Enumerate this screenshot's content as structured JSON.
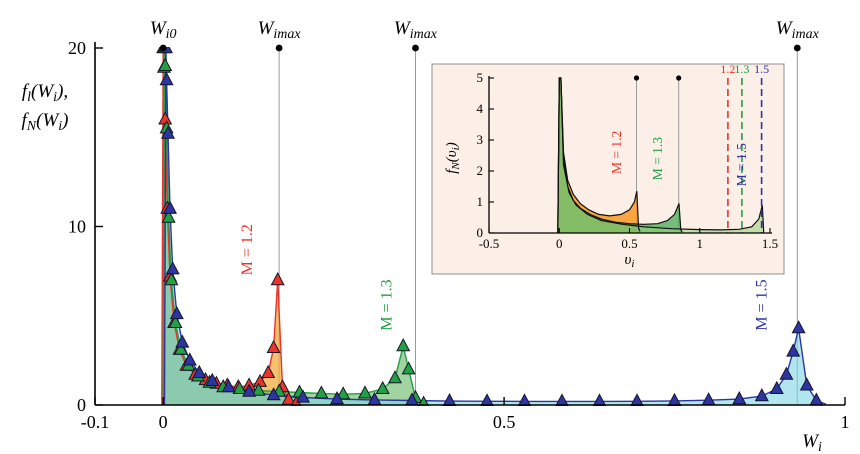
{
  "figure": {
    "background": "#ffffff"
  },
  "chart_data": [
    {
      "id": "main",
      "type": "line",
      "title": "",
      "ylabel_lines": [
        "f_{l}(W_{i}),",
        "f_{N}(W_{i})"
      ],
      "xlabel": "W_{i}",
      "xlim": [
        -0.1,
        1.0
      ],
      "ylim": [
        0,
        20
      ],
      "grid": false,
      "legend_position": "none",
      "xticks": [
        {
          "v": -0.1,
          "label": "-0.1"
        },
        {
          "v": 0,
          "label": "0"
        },
        {
          "v": 0.5,
          "label": "0.5"
        },
        {
          "v": 1,
          "label": "1"
        }
      ],
      "yticks": [
        {
          "v": 0,
          "label": "0"
        },
        {
          "v": 10,
          "label": "10"
        },
        {
          "v": 20,
          "label": "20"
        }
      ],
      "top_markers": [
        {
          "label": "W_{i0}",
          "x": 0
        },
        {
          "label": "W_{imax}",
          "x": 0.17
        },
        {
          "label": "W_{imax}",
          "x": 0.37
        },
        {
          "label": "W_{imax}",
          "x": 0.93
        }
      ],
      "series": [
        {
          "name": "M = 1.2",
          "color": "#e8342a",
          "fill": "rgba(242,166,50,0.70)",
          "marker": "triangle",
          "x": [
            -0.002,
            0.0,
            0.001,
            0.003,
            0.006,
            0.01,
            0.016,
            0.024,
            0.034,
            0.047,
            0.062,
            0.078,
            0.094,
            0.11,
            0.126,
            0.142,
            0.154,
            0.162,
            0.168,
            0.175,
            0.184,
            0.195
          ],
          "y": [
            0,
            20,
            18.9,
            16.0,
            11.0,
            7.2,
            4.6,
            3.1,
            2.2,
            1.7,
            1.4,
            1.2,
            1.1,
            1.0,
            1.1,
            1.3,
            1.8,
            3.2,
            7.0,
            1.0,
            0.3,
            0.08
          ]
        },
        {
          "name": "M = 1.3",
          "color": "#21a044",
          "fill": "rgba(84,176,84,0.55)",
          "marker": "triangle",
          "x": [
            0.0,
            0.002,
            0.003,
            0.005,
            0.008,
            0.012,
            0.018,
            0.026,
            0.037,
            0.051,
            0.068,
            0.088,
            0.112,
            0.14,
            0.17,
            0.2,
            0.232,
            0.264,
            0.296,
            0.322,
            0.34,
            0.352,
            0.36,
            0.37,
            0.382
          ],
          "y": [
            0,
            20,
            19.0,
            15.5,
            10.5,
            7.0,
            4.6,
            3.1,
            2.2,
            1.6,
            1.25,
            1.0,
            0.9,
            0.8,
            0.75,
            0.7,
            0.65,
            0.6,
            0.65,
            0.9,
            1.5,
            3.3,
            2.0,
            0.4,
            0.08
          ]
        },
        {
          "name": "M = 1.5",
          "color": "#2c35a2",
          "fill": "rgba(126,214,228,0.60)",
          "marker": "triangle",
          "x": [
            0.002,
            0.004,
            0.005,
            0.007,
            0.01,
            0.014,
            0.02,
            0.028,
            0.039,
            0.053,
            0.072,
            0.096,
            0.126,
            0.162,
            0.205,
            0.255,
            0.31,
            0.365,
            0.42,
            0.475,
            0.53,
            0.585,
            0.64,
            0.695,
            0.75,
            0.8,
            0.845,
            0.878,
            0.9,
            0.914,
            0.924,
            0.932,
            0.944,
            0.958,
            0.972
          ],
          "y": [
            0,
            20,
            18.2,
            15.2,
            11.0,
            7.6,
            5.1,
            3.5,
            2.5,
            1.8,
            1.35,
            1.0,
            0.75,
            0.55,
            0.42,
            0.33,
            0.28,
            0.25,
            0.22,
            0.21,
            0.2,
            0.2,
            0.2,
            0.21,
            0.23,
            0.27,
            0.33,
            0.5,
            0.9,
            1.7,
            3.0,
            4.3,
            1.1,
            0.25,
            0.05
          ]
        }
      ],
      "series_labels": [
        {
          "text": "M = 1.2",
          "color": "#e8342a",
          "x": 0.13,
          "y": 8.7
        },
        {
          "text": "M = 1.3",
          "color": "#21a044",
          "x": 0.335,
          "y": 5.6
        },
        {
          "text": "M = 1.5",
          "color": "#2c35a2",
          "x": 0.885,
          "y": 5.6
        }
      ]
    },
    {
      "id": "inset",
      "type": "line",
      "panel_bg": "#fcefe7",
      "ylabel": "f_{N}(υ_{i})",
      "xlabel": "υ_{i}",
      "xlim": [
        -0.5,
        1.5
      ],
      "ylim": [
        0,
        5
      ],
      "grid": false,
      "xticks": [
        {
          "v": -0.5,
          "label": "-0.5"
        },
        {
          "v": 0,
          "label": "0"
        },
        {
          "v": 0.5,
          "label": "0.5"
        },
        {
          "v": 1,
          "label": "1"
        },
        {
          "v": 1.5,
          "label": "1.5"
        }
      ],
      "yticks": [
        {
          "v": 0,
          "label": "0"
        },
        {
          "v": 1,
          "label": "1"
        },
        {
          "v": 2,
          "label": "2"
        },
        {
          "v": 3,
          "label": "3"
        },
        {
          "v": 4,
          "label": "4"
        },
        {
          "v": 5,
          "label": "5"
        }
      ],
      "solid_markers": [
        0.55,
        0.85
      ],
      "dashed_lines": [
        {
          "x": 1.2,
          "label": "1.2",
          "color": "#e8342a"
        },
        {
          "x": 1.3,
          "label": "1.3",
          "color": "#21a044"
        },
        {
          "x": 1.44,
          "label": "1.5",
          "color": "#2c35a2"
        }
      ],
      "series": [
        {
          "name": "M = 1.2",
          "color": "#111111",
          "fill": "rgba(247,152,36,0.85)",
          "x": [
            -0.01,
            0.0,
            0.012,
            0.03,
            0.06,
            0.1,
            0.15,
            0.21,
            0.28,
            0.36,
            0.44,
            0.5,
            0.535,
            0.552,
            0.565,
            0.575
          ],
          "y": [
            0,
            5,
            5,
            2.6,
            1.7,
            1.25,
            0.95,
            0.75,
            0.6,
            0.55,
            0.6,
            0.75,
            1.0,
            1.35,
            0.15,
            0.05
          ]
        },
        {
          "name": "M = 1.3",
          "color": "#111111",
          "fill": "rgba(72,170,84,0.75)",
          "x": [
            -0.01,
            0.0,
            0.012,
            0.03,
            0.06,
            0.1,
            0.15,
            0.22,
            0.3,
            0.4,
            0.5,
            0.6,
            0.7,
            0.77,
            0.82,
            0.852,
            0.865,
            0.875
          ],
          "y": [
            0,
            5,
            5,
            2.4,
            1.5,
            1.05,
            0.8,
            0.6,
            0.45,
            0.35,
            0.3,
            0.28,
            0.3,
            0.4,
            0.6,
            0.95,
            0.1,
            0.03
          ]
        },
        {
          "name": "M = 1.5",
          "color": "#111111",
          "fill": "rgba(148,205,122,0.55)",
          "x": [
            -0.01,
            0.0,
            0.012,
            0.03,
            0.07,
            0.12,
            0.2,
            0.3,
            0.45,
            0.6,
            0.8,
            1.0,
            1.15,
            1.28,
            1.37,
            1.42,
            1.445,
            1.455
          ],
          "y": [
            0,
            5,
            5,
            2.2,
            1.3,
            0.9,
            0.6,
            0.4,
            0.28,
            0.2,
            0.14,
            0.11,
            0.1,
            0.12,
            0.2,
            0.45,
            0.9,
            0.02
          ]
        }
      ],
      "series_labels": [
        {
          "text": "M = 1.2",
          "color": "#e8342a",
          "x": 0.44,
          "y": 2.6
        },
        {
          "text": "M = 1.3",
          "color": "#21a044",
          "x": 0.73,
          "y": 2.4
        },
        {
          "text": "M = 1.5",
          "color": "#2c35a2",
          "x": 1.33,
          "y": 2.2
        }
      ]
    }
  ]
}
